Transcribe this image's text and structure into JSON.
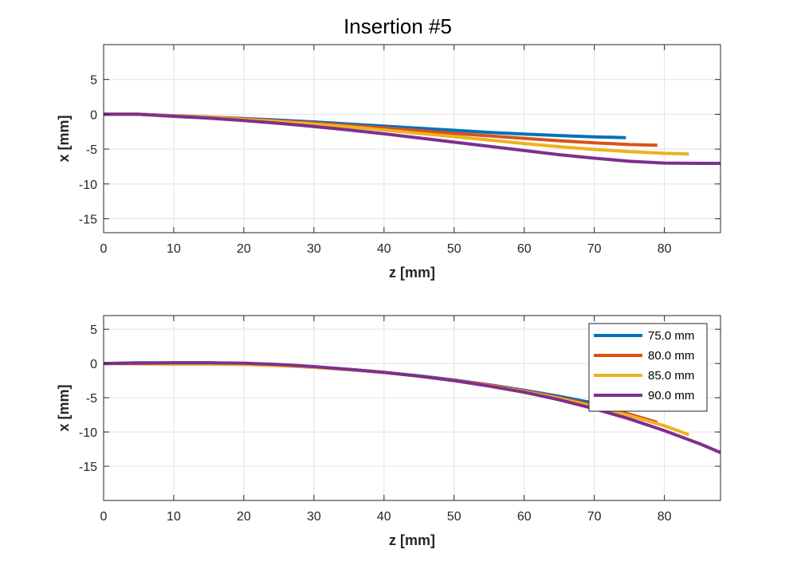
{
  "figure": {
    "title": "Insertion #5"
  },
  "chart_data": [
    {
      "type": "line",
      "title": "Insertion #5",
      "xlabel": "z [mm]",
      "ylabel": "x [mm]",
      "xlim": [
        0,
        88
      ],
      "ylim": [
        -17,
        10
      ],
      "xticks": [
        0,
        10,
        20,
        30,
        40,
        50,
        60,
        70,
        80
      ],
      "yticks": [
        5,
        0,
        -5,
        -10,
        -15
      ],
      "grid": true,
      "series": [
        {
          "name": "75.0 mm",
          "color": "#0072BD",
          "x": [
            0,
            5,
            10,
            15,
            20,
            25,
            30,
            35,
            40,
            45,
            50,
            55,
            60,
            65,
            70,
            74.5
          ],
          "y": [
            0,
            0,
            -0.2,
            -0.4,
            -0.6,
            -0.85,
            -1.1,
            -1.4,
            -1.7,
            -2.0,
            -2.3,
            -2.6,
            -2.85,
            -3.05,
            -3.25,
            -3.35
          ]
        },
        {
          "name": "80.0 mm",
          "color": "#D95319",
          "x": [
            0,
            5,
            10,
            15,
            20,
            25,
            30,
            35,
            40,
            45,
            50,
            55,
            60,
            65,
            70,
            75,
            79
          ],
          "y": [
            0,
            0,
            -0.2,
            -0.4,
            -0.65,
            -0.95,
            -1.25,
            -1.6,
            -1.95,
            -2.35,
            -2.75,
            -3.1,
            -3.45,
            -3.8,
            -4.1,
            -4.35,
            -4.45
          ]
        },
        {
          "name": "85.0 mm",
          "color": "#EDB120",
          "x": [
            0,
            5,
            10,
            15,
            20,
            25,
            30,
            35,
            40,
            45,
            50,
            55,
            60,
            65,
            70,
            75,
            80,
            83.5
          ],
          "y": [
            0,
            0,
            -0.25,
            -0.45,
            -0.75,
            -1.05,
            -1.4,
            -1.8,
            -2.25,
            -2.75,
            -3.2,
            -3.7,
            -4.2,
            -4.65,
            -5.05,
            -5.35,
            -5.6,
            -5.7
          ]
        },
        {
          "name": "90.0 mm",
          "color": "#7E2F8E",
          "x": [
            0,
            5,
            10,
            15,
            20,
            25,
            30,
            35,
            40,
            45,
            50,
            55,
            60,
            65,
            70,
            75,
            80,
            85,
            88
          ],
          "y": [
            0,
            0,
            -0.3,
            -0.55,
            -0.9,
            -1.3,
            -1.75,
            -2.25,
            -2.8,
            -3.4,
            -4.0,
            -4.6,
            -5.2,
            -5.8,
            -6.3,
            -6.75,
            -7.0,
            -7.05,
            -7.05
          ]
        }
      ]
    },
    {
      "type": "line",
      "xlabel": "z [mm]",
      "ylabel": "x [mm]",
      "xlim": [
        0,
        88
      ],
      "ylim": [
        -20,
        7
      ],
      "xticks": [
        0,
        10,
        20,
        30,
        40,
        50,
        60,
        70,
        80
      ],
      "yticks": [
        5,
        0,
        -5,
        -10,
        -15
      ],
      "grid": true,
      "legend": "top-right",
      "series": [
        {
          "name": "75.0 mm",
          "color": "#0072BD",
          "x": [
            0,
            5,
            10,
            15,
            20,
            25,
            30,
            35,
            40,
            45,
            50,
            55,
            60,
            65,
            70,
            74.5
          ],
          "y": [
            0,
            0.1,
            0.1,
            0.1,
            0,
            -0.2,
            -0.5,
            -0.85,
            -1.3,
            -1.8,
            -2.4,
            -3.1,
            -3.9,
            -4.8,
            -5.8,
            -6.8
          ]
        },
        {
          "name": "80.0 mm",
          "color": "#D95319",
          "x": [
            0,
            5,
            10,
            15,
            20,
            25,
            30,
            35,
            40,
            45,
            50,
            55,
            60,
            65,
            70,
            75,
            79
          ],
          "y": [
            0,
            0,
            0,
            -0.05,
            -0.1,
            -0.3,
            -0.55,
            -0.9,
            -1.3,
            -1.85,
            -2.45,
            -3.15,
            -4.0,
            -5.0,
            -6.1,
            -7.4,
            -8.6
          ]
        },
        {
          "name": "85.0 mm",
          "color": "#EDB120",
          "x": [
            0,
            5,
            10,
            15,
            20,
            25,
            30,
            35,
            40,
            45,
            50,
            55,
            60,
            65,
            70,
            75,
            80,
            83.5
          ],
          "y": [
            0,
            -0.05,
            -0.1,
            -0.1,
            -0.15,
            -0.3,
            -0.55,
            -0.9,
            -1.3,
            -1.85,
            -2.5,
            -3.25,
            -4.1,
            -5.1,
            -6.3,
            -7.6,
            -9.1,
            -10.4
          ]
        },
        {
          "name": "90.0 mm",
          "color": "#7E2F8E",
          "x": [
            0,
            5,
            10,
            15,
            20,
            25,
            30,
            35,
            40,
            45,
            50,
            55,
            60,
            65,
            70,
            75,
            80,
            85,
            88
          ],
          "y": [
            0,
            0.05,
            0.1,
            0.1,
            0.05,
            -0.15,
            -0.45,
            -0.85,
            -1.3,
            -1.85,
            -2.5,
            -3.3,
            -4.2,
            -5.3,
            -6.6,
            -8.1,
            -9.8,
            -11.7,
            -13.0
          ]
        }
      ]
    }
  ]
}
